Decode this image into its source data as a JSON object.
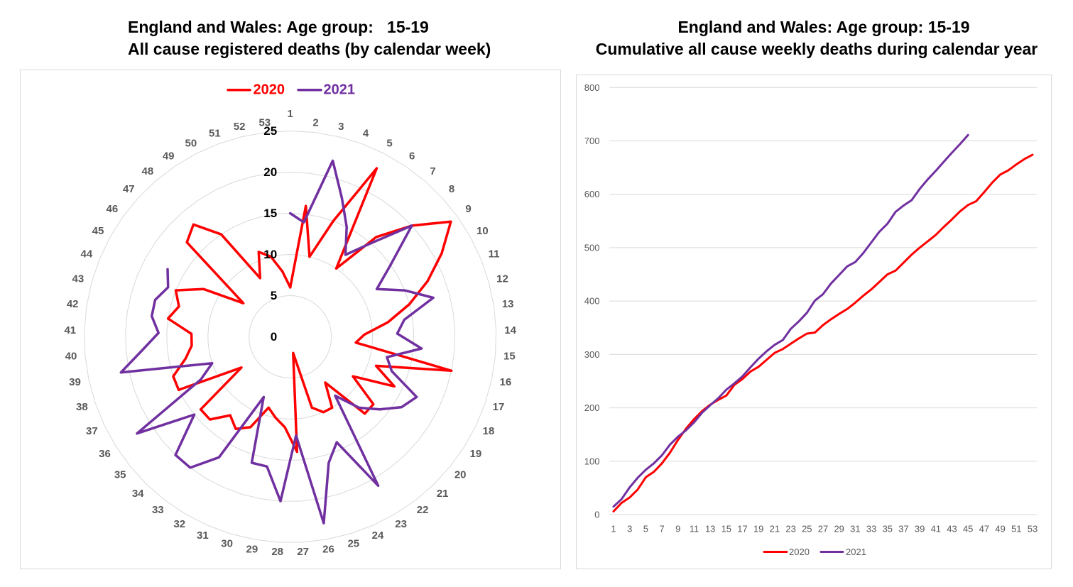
{
  "chart_data": [
    {
      "type": "line",
      "variant": "radar",
      "title": "England and Wales: Age group:   15-19",
      "subtitle": "All cause registered deaths (by calendar week)",
      "categories": [
        "1",
        "2",
        "3",
        "4",
        "5",
        "6",
        "7",
        "8",
        "9",
        "10",
        "11",
        "12",
        "13",
        "14",
        "15",
        "16",
        "17",
        "18",
        "19",
        "20",
        "21",
        "22",
        "23",
        "24",
        "25",
        "26",
        "27",
        "28",
        "29",
        "30",
        "31",
        "32",
        "33",
        "34",
        "35",
        "36",
        "37",
        "38",
        "39",
        "40",
        "41",
        "42",
        "43",
        "44",
        "45",
        "46",
        "47",
        "48",
        "49",
        "50",
        "51",
        "52",
        "53"
      ],
      "series": [
        {
          "name": "2020",
          "color": "#FF0000",
          "values": [
            6,
            16,
            10,
            15,
            23,
            10,
            16,
            20,
            24,
            21,
            18,
            15,
            12,
            9,
            8,
            20,
            11,
            14,
            9,
            13,
            13,
            7,
            10,
            10,
            9,
            2,
            14,
            11,
            10,
            9,
            12,
            13,
            12,
            14,
            14,
            7,
            15,
            15,
            13,
            12,
            12,
            15,
            14,
            15,
            12,
            7,
            17,
            18,
            15,
            8,
            11,
            10,
            8
          ]
        },
        {
          "name": "2021",
          "color": "#7030A0",
          "values": [
            15,
            14,
            22,
            18,
            15,
            12,
            15,
            20,
            15,
            12,
            15,
            18,
            14,
            13,
            16,
            12,
            13,
            17,
            16,
            14,
            12,
            9,
            21,
            14,
            16,
            23,
            12,
            20,
            16,
            16,
            8,
            17,
            20,
            20,
            15,
            22,
            12,
            10,
            21,
            18,
            16,
            17,
            17,
            16,
            17
          ]
        }
      ],
      "radial_axis": {
        "min": 0,
        "max": 25,
        "ticks": [
          0,
          5,
          10,
          15,
          20,
          25
        ]
      },
      "xlabel": "",
      "ylabel": "",
      "grid": true,
      "legend": "top"
    },
    {
      "type": "line",
      "title": "England and Wales: Age group: 15-19",
      "subtitle": "Cumulative all cause weekly deaths during calendar year",
      "categories": [
        "1",
        "2",
        "3",
        "4",
        "5",
        "6",
        "7",
        "8",
        "9",
        "10",
        "11",
        "12",
        "13",
        "14",
        "15",
        "16",
        "17",
        "18",
        "19",
        "20",
        "21",
        "22",
        "23",
        "24",
        "25",
        "26",
        "27",
        "28",
        "29",
        "30",
        "31",
        "32",
        "33",
        "34",
        "35",
        "36",
        "37",
        "38",
        "39",
        "40",
        "41",
        "42",
        "43",
        "44",
        "45",
        "46",
        "47",
        "48",
        "49",
        "50",
        "51",
        "52",
        "53"
      ],
      "x_tick_labels": [
        "1",
        "3",
        "5",
        "7",
        "9",
        "11",
        "13",
        "15",
        "17",
        "19",
        "21",
        "23",
        "25",
        "27",
        "29",
        "31",
        "33",
        "35",
        "37",
        "39",
        "41",
        "43",
        "45",
        "47",
        "49",
        "51",
        "53"
      ],
      "series": [
        {
          "name": "2020",
          "color": "#FF0000",
          "values": [
            6,
            22,
            32,
            47,
            70,
            80,
            96,
            116,
            140,
            161,
            179,
            194,
            206,
            215,
            223,
            243,
            254,
            268,
            277,
            290,
            303,
            310,
            320,
            330,
            339,
            341,
            355,
            366,
            376,
            385,
            397,
            410,
            422,
            436,
            450,
            457,
            472,
            487,
            500,
            512,
            524,
            539,
            553,
            568,
            580,
            587,
            604,
            622,
            637,
            645,
            656,
            666,
            674
          ]
        },
        {
          "name": "2021",
          "color": "#7030A0",
          "values": [
            15,
            29,
            51,
            69,
            84,
            96,
            111,
            131,
            146,
            158,
            173,
            191,
            205,
            218,
            234,
            246,
            259,
            276,
            292,
            306,
            318,
            327,
            348,
            362,
            378,
            401,
            413,
            433,
            449,
            465,
            473,
            490,
            510,
            530,
            545,
            567,
            579,
            589,
            610,
            628,
            644,
            661,
            678,
            694,
            711
          ]
        }
      ],
      "xlabel": "",
      "ylabel": "",
      "ylim": [
        0,
        800
      ],
      "yticks": [
        0,
        100,
        200,
        300,
        400,
        500,
        600,
        700,
        800
      ],
      "grid": true,
      "legend": "bottom"
    }
  ],
  "theme": {
    "gridline_color": "#D9D9D9",
    "axis_text_color": "#595959",
    "frame_color": "#D9D9D9"
  }
}
